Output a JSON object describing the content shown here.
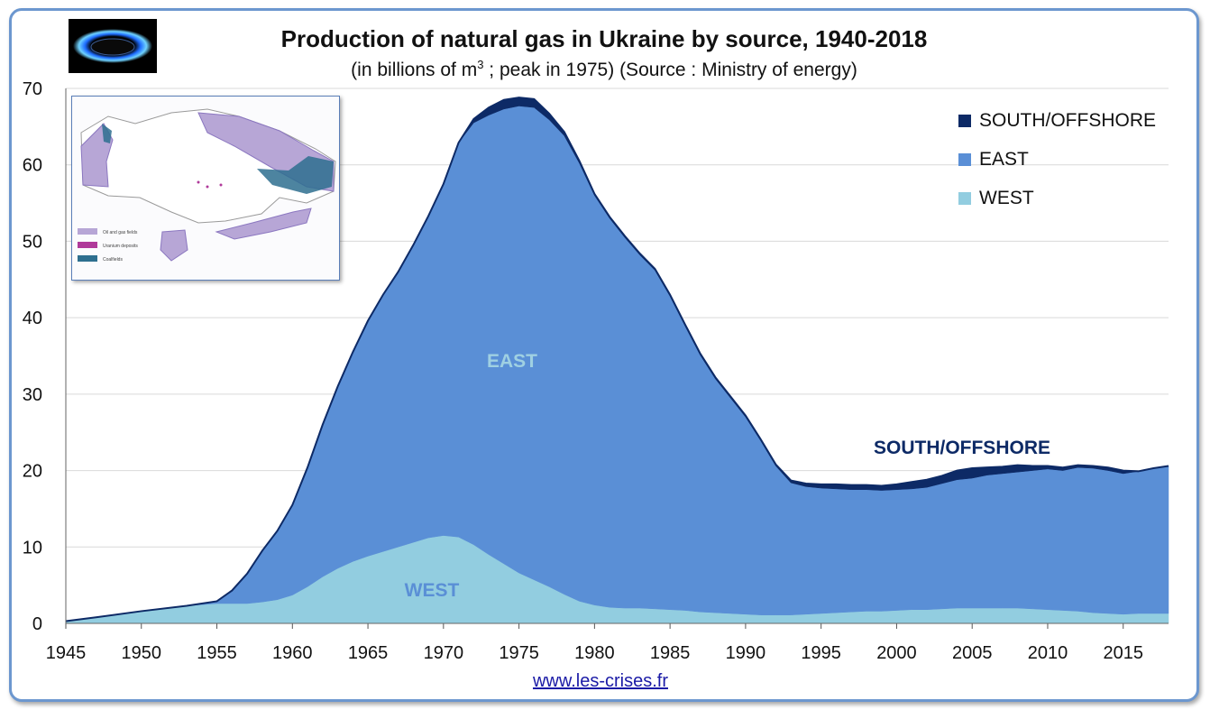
{
  "header": {
    "title": "Production of natural gas in Ukraine by source, 1940-2018",
    "subtitle_pre": "(in billions of m",
    "subtitle_sup": "3",
    "subtitle_post": " ; peak in 1975)  (Source : Ministry of energy)"
  },
  "footer": {
    "link": "www.les-crises.fr"
  },
  "inset_map": {
    "legend": [
      "Oil and gas fields",
      "Uranium deposits",
      "Coalfields"
    ]
  },
  "colors": {
    "south": "#0d2a66",
    "east": "#5a8fd6",
    "west": "#92cde0",
    "label_east": "#9fd0e2",
    "label_west": "#5a8fd6",
    "label_south": "#0d2a66"
  },
  "chart_data": {
    "type": "area",
    "stacked": true,
    "title": "Production of natural gas in Ukraine by source, 1940-2018",
    "xlabel": "",
    "ylabel": "",
    "xlim": [
      1945,
      2018
    ],
    "ylim": [
      0,
      70
    ],
    "x_ticks": [
      "1945",
      "1950",
      "1955",
      "1960",
      "1965",
      "1970",
      "1975",
      "1980",
      "1985",
      "1990",
      "1995",
      "2000",
      "2005",
      "2010",
      "2015"
    ],
    "y_ticks": [
      "0",
      "10",
      "20",
      "30",
      "40",
      "50",
      "60",
      "70"
    ],
    "grid": true,
    "legend_position": "top-right",
    "x": [
      1945,
      1947,
      1950,
      1953,
      1955,
      1956,
      1957,
      1958,
      1959,
      1960,
      1961,
      1962,
      1963,
      1964,
      1965,
      1966,
      1967,
      1968,
      1969,
      1970,
      1971,
      1972,
      1973,
      1974,
      1975,
      1976,
      1977,
      1978,
      1979,
      1980,
      1981,
      1982,
      1983,
      1984,
      1985,
      1986,
      1987,
      1988,
      1989,
      1990,
      1991,
      1992,
      1993,
      1994,
      1995,
      1996,
      1997,
      1998,
      1999,
      2000,
      2001,
      2002,
      2003,
      2004,
      2005,
      2006,
      2007,
      2008,
      2009,
      2010,
      2011,
      2012,
      2013,
      2014,
      2015,
      2016,
      2017,
      2018
    ],
    "series": [
      {
        "name": "WEST",
        "values": [
          0.3,
          0.8,
          1.6,
          2.3,
          2.6,
          2.6,
          2.6,
          2.8,
          3.1,
          3.7,
          4.8,
          6.1,
          7.2,
          8.1,
          8.8,
          9.4,
          10.0,
          10.6,
          11.2,
          11.5,
          11.3,
          10.3,
          9.0,
          7.8,
          6.6,
          5.7,
          4.8,
          3.8,
          2.9,
          2.4,
          2.1,
          2.0,
          2.0,
          1.9,
          1.8,
          1.7,
          1.5,
          1.4,
          1.3,
          1.2,
          1.1,
          1.1,
          1.1,
          1.2,
          1.3,
          1.4,
          1.5,
          1.6,
          1.6,
          1.7,
          1.8,
          1.8,
          1.9,
          2.0,
          2.0,
          2.0,
          2.0,
          2.0,
          1.9,
          1.8,
          1.7,
          1.6,
          1.4,
          1.3,
          1.2,
          1.3,
          1.3,
          1.3
        ]
      },
      {
        "name": "EAST",
        "values": [
          0,
          0,
          0,
          0,
          0.3,
          1.7,
          3.9,
          6.7,
          9.0,
          11.8,
          15.6,
          19.9,
          23.8,
          27.4,
          30.8,
          33.6,
          36.0,
          38.9,
          42.1,
          46.0,
          51.6,
          55.2,
          57.5,
          59.5,
          61.1,
          61.8,
          61.1,
          60.0,
          57.3,
          53.6,
          50.9,
          48.5,
          46.2,
          44.3,
          41.0,
          37.2,
          33.6,
          30.6,
          28.2,
          25.8,
          22.8,
          19.5,
          17.3,
          16.7,
          16.4,
          16.2,
          16.0,
          15.9,
          15.8,
          15.8,
          15.8,
          16.0,
          16.4,
          16.8,
          17.0,
          17.4,
          17.6,
          17.8,
          18.1,
          18.4,
          18.3,
          18.8,
          18.9,
          18.7,
          18.4,
          18.6,
          19.0,
          19.3
        ]
      },
      {
        "name": "SOUTH/OFFSHORE",
        "values": [
          0,
          0,
          0,
          0,
          0,
          0,
          0,
          0,
          0,
          0,
          0,
          0,
          0,
          0,
          0,
          0,
          0,
          0,
          0,
          0,
          0,
          0.5,
          1.0,
          1.2,
          1.1,
          1.1,
          0.8,
          0.5,
          0.3,
          0.2,
          0.2,
          0.2,
          0.2,
          0.2,
          0.2,
          0.2,
          0.2,
          0.2,
          0.2,
          0.2,
          0.2,
          0.2,
          0.3,
          0.4,
          0.5,
          0.6,
          0.6,
          0.6,
          0.6,
          0.7,
          0.9,
          1.0,
          1.0,
          1.2,
          1.3,
          1.0,
          0.9,
          0.9,
          0.6,
          0.4,
          0.4,
          0.3,
          0.3,
          0.4,
          0.4,
          0,
          0,
          0
        ]
      }
    ],
    "annotations": [
      "EAST",
      "WEST",
      "SOUTH/OFFSHORE"
    ]
  }
}
